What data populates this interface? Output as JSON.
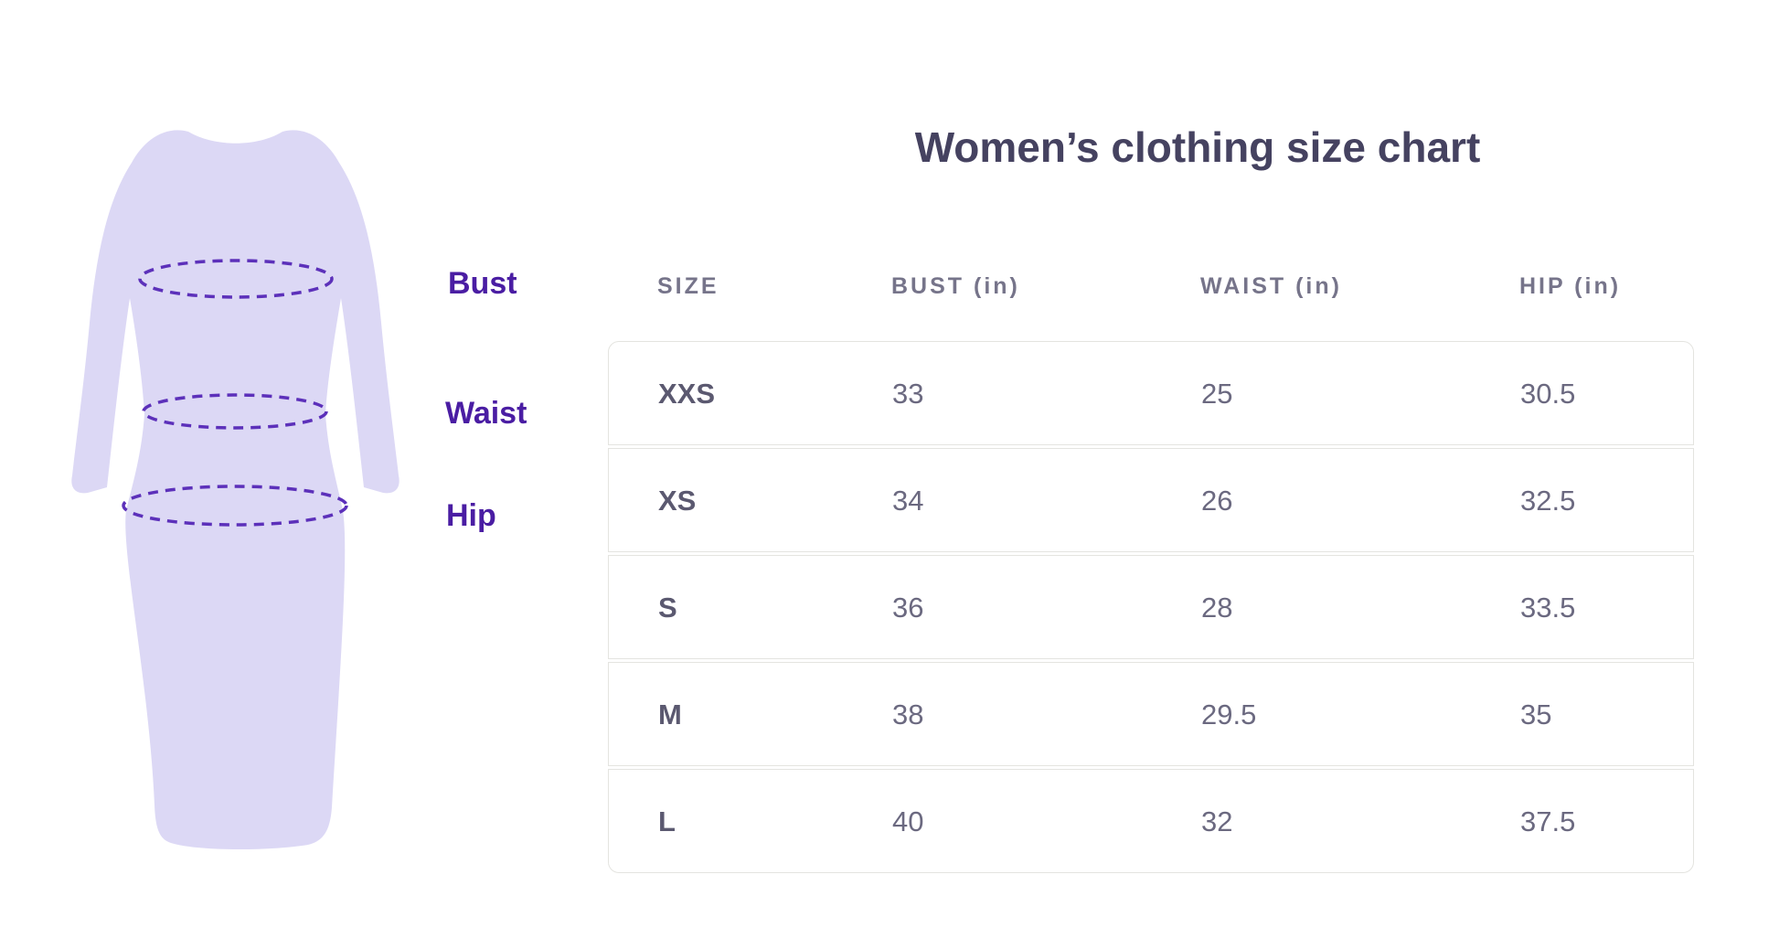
{
  "page": {
    "background": "#ffffff"
  },
  "title": "Women’s clothing size chart",
  "illustration": {
    "type": "dress-measurement-figure",
    "labels": [
      {
        "text": "Bust"
      },
      {
        "text": "Waist"
      },
      {
        "text": "Hip"
      }
    ],
    "dress_fill": "#dcd8f5",
    "measure_line_color": "#5c30ba",
    "label_color": "#4a1da3"
  },
  "table": {
    "headers": [
      "SIZE",
      "BUST (in)",
      "WAIST (in)",
      "HIP (in)"
    ],
    "rows": [
      {
        "size": "XXS",
        "bust": "33",
        "waist": "25",
        "hip": "30.5"
      },
      {
        "size": "XS",
        "bust": "34",
        "waist": "26",
        "hip": "32.5"
      },
      {
        "size": "S",
        "bust": "36",
        "waist": "28",
        "hip": "33.5"
      },
      {
        "size": "M",
        "bust": "38",
        "waist": "29.5",
        "hip": "35"
      },
      {
        "size": "L",
        "bust": "40",
        "waist": "32",
        "hip": "37.5"
      }
    ]
  },
  "chart_data": {
    "type": "table",
    "title": "Women’s clothing size chart",
    "columns": [
      "SIZE",
      "BUST (in)",
      "WAIST (in)",
      "HIP (in)"
    ],
    "rows": [
      [
        "XXS",
        33,
        25,
        30.5
      ],
      [
        "XS",
        34,
        26,
        32.5
      ],
      [
        "S",
        36,
        28,
        33.5
      ],
      [
        "M",
        38,
        29.5,
        35
      ],
      [
        "L",
        40,
        32,
        37.5
      ]
    ],
    "annotations": [
      "Bust",
      "Waist",
      "Hip"
    ]
  },
  "colors": {
    "title": "#454260",
    "header_text": "#76748a",
    "cell_text": "#6b6980",
    "size_text": "#5b5970",
    "row_border": "#e4e4e0",
    "accent_purple": "#4a1da3",
    "dress_fill": "#dcd8f5",
    "measure_line": "#5c30ba"
  }
}
